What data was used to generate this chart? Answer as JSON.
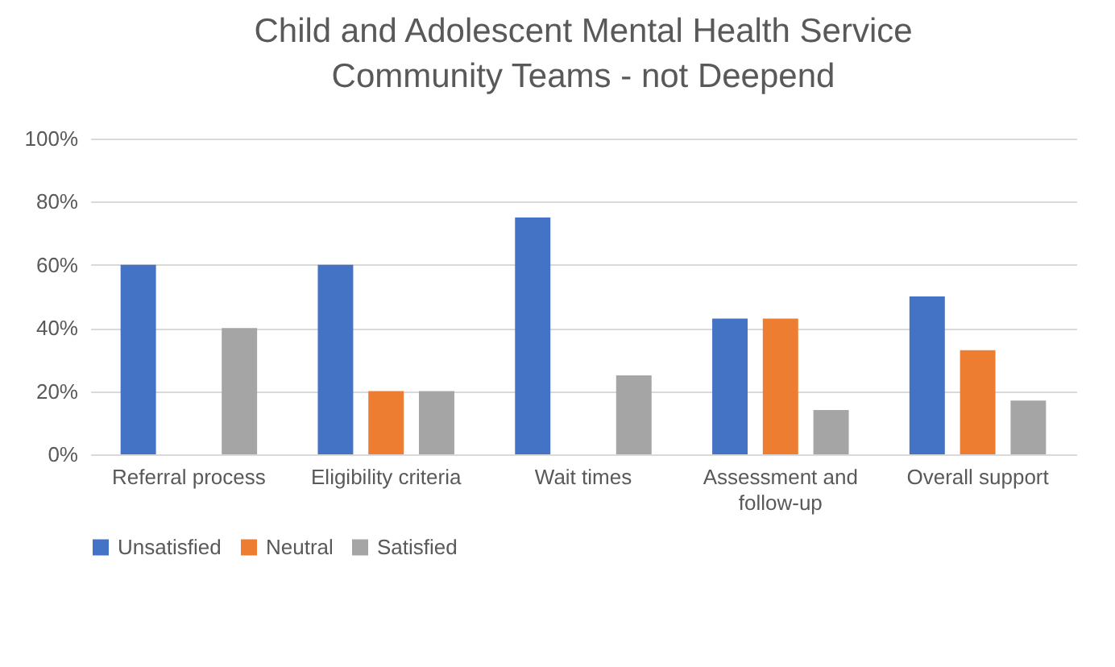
{
  "chart_data": {
    "type": "bar",
    "title": "Child and Adolescent Mental Health Service Community Teams - not Deepend",
    "categories": [
      "Referral process",
      "Eligibility criteria",
      "Wait times",
      "Assessment and follow-up",
      "Overall support"
    ],
    "series": [
      {
        "name": "Unsatisfied",
        "color": "#4472c4",
        "values": [
          60,
          60,
          75,
          43,
          50
        ]
      },
      {
        "name": "Neutral",
        "color": "#ed7d31",
        "values": [
          0,
          20,
          0,
          43,
          33
        ]
      },
      {
        "name": "Satisfied",
        "color": "#a5a5a5",
        "values": [
          40,
          20,
          25,
          14,
          17
        ]
      }
    ],
    "ylim": [
      0,
      100
    ],
    "yticks": [
      {
        "value": 0,
        "label": "0%"
      },
      {
        "value": 20,
        "label": "20%"
      },
      {
        "value": 40,
        "label": "40%"
      },
      {
        "value": 60,
        "label": "60%"
      },
      {
        "value": 80,
        "label": "80%"
      },
      {
        "value": 100,
        "label": "100%"
      }
    ],
    "grid": "y",
    "legend": "bottom"
  }
}
